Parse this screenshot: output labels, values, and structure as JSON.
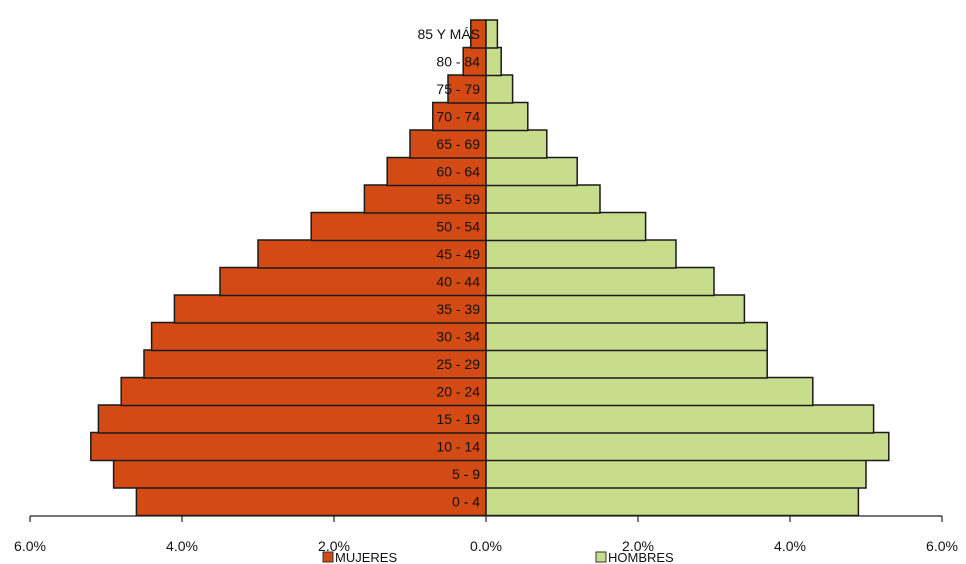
{
  "chart_data": {
    "type": "bar",
    "orientation": "horizontal",
    "layout": "population-pyramid",
    "categories": [
      "0 - 4",
      "5 - 9",
      "10 - 14",
      "15 - 19",
      "20 - 24",
      "25 - 29",
      "30 - 34",
      "35 - 39",
      "40 - 44",
      "45 - 49",
      "50 - 54",
      "55 - 59",
      "60 - 64",
      "65 - 69",
      "70 - 74",
      "75 - 79",
      "80 - 84",
      "85 Y MÁS"
    ],
    "series": [
      {
        "name": "MUJERES",
        "side": "left",
        "color": "#D34A14",
        "values": [
          4.6,
          4.9,
          5.2,
          5.1,
          4.8,
          4.5,
          4.4,
          4.1,
          3.5,
          3.0,
          2.3,
          1.6,
          1.3,
          1.0,
          0.7,
          0.5,
          0.3,
          0.2
        ]
      },
      {
        "name": "HOMBRES",
        "side": "right",
        "color": "#C8DD8C",
        "values": [
          4.9,
          5.0,
          5.3,
          5.1,
          4.3,
          3.7,
          3.7,
          3.4,
          3.0,
          2.5,
          2.1,
          1.5,
          1.2,
          0.8,
          0.55,
          0.35,
          0.2,
          0.15
        ]
      }
    ],
    "x_ticks": [
      "6.0%",
      "4.0%",
      "2.0%",
      "0.0%",
      "2.0%",
      "4.0%",
      "6.0%"
    ],
    "xlim": [
      -6,
      6
    ],
    "legend_position": "bottom"
  }
}
